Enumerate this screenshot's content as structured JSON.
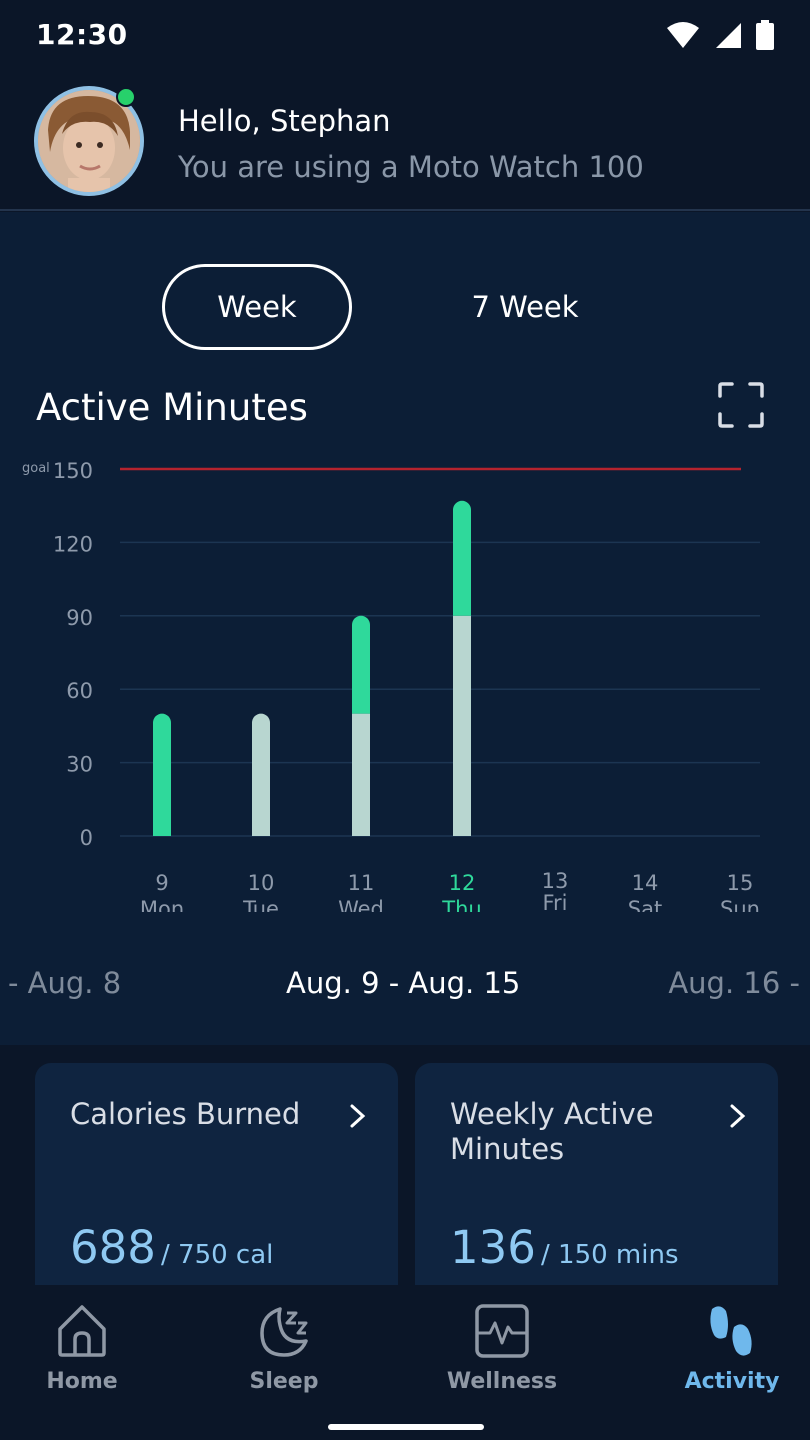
{
  "status_bar": {
    "time": "12:30"
  },
  "header": {
    "greeting": "Hello, Stephan",
    "device": "You are using a Moto Watch 100"
  },
  "tabs": [
    {
      "label": "Week",
      "selected": true
    },
    {
      "label": "7 Week",
      "selected": false
    }
  ],
  "chart_title": "Active Minutes",
  "chart_data": {
    "type": "bar",
    "stacked": true,
    "y_ticks": [
      "0",
      "30",
      "60",
      "90",
      "120",
      "150"
    ],
    "ylim": [
      0,
      150
    ],
    "goal": {
      "label": "goal",
      "value": 150,
      "color": "#b5232e"
    },
    "days": [
      {
        "num": "9",
        "name": "Mon",
        "base": 0,
        "extra": 50
      },
      {
        "num": "10",
        "name": "Tue",
        "base": 50,
        "extra": 0
      },
      {
        "num": "11",
        "name": "Wed",
        "base": 50,
        "extra": 40
      },
      {
        "num": "12",
        "name": "Thu",
        "base": 90,
        "extra": 47,
        "highlight": true
      },
      {
        "num": "13",
        "name": "Fri",
        "base": 0,
        "extra": 0
      },
      {
        "num": "14",
        "name": "Sat",
        "base": 0,
        "extra": 0
      },
      {
        "num": "15",
        "name": "Sun",
        "base": 0,
        "extra": 0
      }
    ],
    "colors": {
      "base": "#b8d6d0",
      "extra": "#2fd99b",
      "highlight_label": "#2fd99b"
    }
  },
  "date_range": {
    "prev": "- Aug. 8",
    "current": "Aug. 9 - Aug. 15",
    "next": "Aug. 16 -"
  },
  "cards": [
    {
      "title": "Calories Burned",
      "value": "688",
      "target": "/ 750 cal"
    },
    {
      "title": "Weekly Active Minutes",
      "value": "136",
      "target": "/ 150 mins"
    }
  ],
  "nav": [
    {
      "label": "Home",
      "icon": "home-icon",
      "active": false
    },
    {
      "label": "Sleep",
      "icon": "sleep-moon-icon",
      "active": false
    },
    {
      "label": "Wellness",
      "icon": "wellness-pulse-icon",
      "active": false
    },
    {
      "label": "Activity",
      "icon": "footprints-icon",
      "active": true
    }
  ]
}
